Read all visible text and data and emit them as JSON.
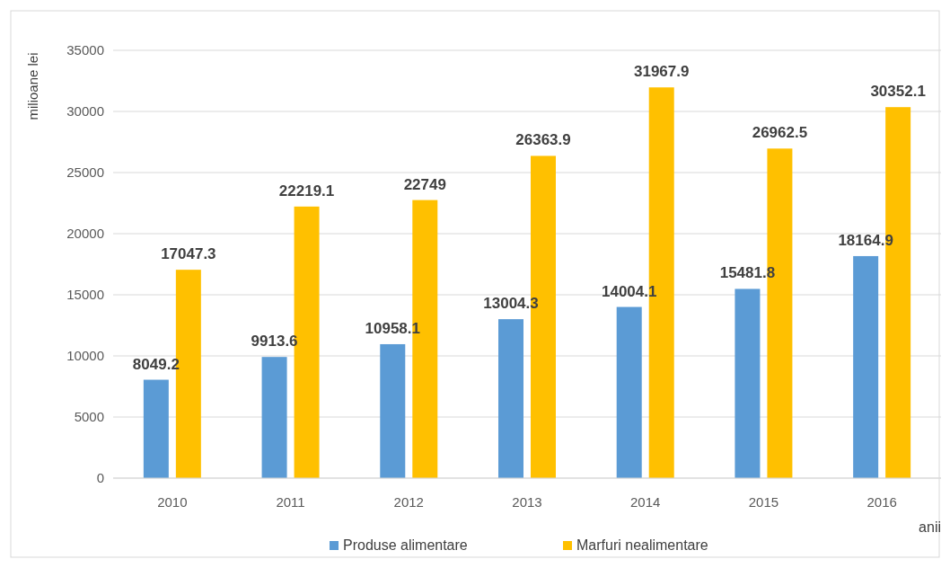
{
  "chart_data": {
    "type": "bar",
    "xlabel": "anii",
    "ylabel": "milioane lei",
    "categories": [
      "2010",
      "2011",
      "2012",
      "2013",
      "2014",
      "2015",
      "2016"
    ],
    "series": [
      {
        "name": "Produse alimentare",
        "color": "#5b9bd5",
        "values": [
          8049.2,
          9913.6,
          10958.1,
          13004.3,
          14004.1,
          15481.8,
          18164.9
        ]
      },
      {
        "name": "Marfuri nealimentare",
        "color": "#ffc000",
        "values": [
          17047.3,
          22219.1,
          22749,
          26363.9,
          31967.9,
          26962.5,
          30352.1
        ]
      }
    ],
    "ylim": [
      0,
      35000
    ],
    "yticks": [
      0,
      5000,
      10000,
      15000,
      20000,
      25000,
      30000,
      35000
    ],
    "grid": "y",
    "legend": "bottom",
    "data_labels": true
  }
}
